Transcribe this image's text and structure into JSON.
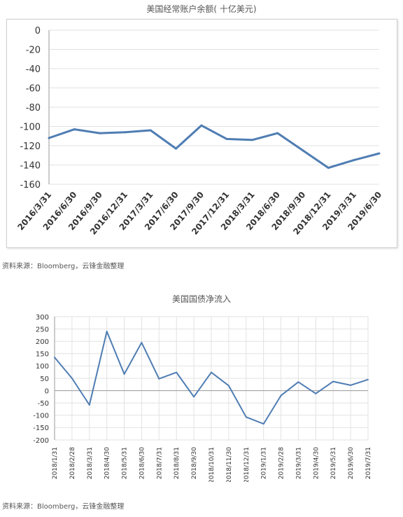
{
  "charts": [
    {
      "title": "美国经常账户余额( 十亿美元)",
      "source": "资料来源：Bloomberg，云锋金融整理"
    },
    {
      "title": "美国国债净流入",
      "source": "资料来源：Bloomberg，云锋金融整理"
    }
  ],
  "chart_data": [
    {
      "type": "line",
      "title": "美国经常账户余额( 十亿美元)",
      "categories": [
        "2016/3/31",
        "2016/6/30",
        "2016/9/30",
        "2016/12/31",
        "2017/3/31",
        "2017/6/30",
        "2017/9/30",
        "2017/12/31",
        "2018/3/31",
        "2018/6/30",
        "2018/9/30",
        "2018/12/31",
        "2019/3/31",
        "2019/6/30"
      ],
      "series": [
        {
          "values": [
            -112,
            -103,
            -107,
            -106,
            -104,
            -123,
            -99,
            -113,
            -114,
            -107,
            -125,
            -143,
            -135,
            -128
          ]
        }
      ],
      "ylim": [
        -160,
        0
      ],
      "yticks": [
        0,
        -20,
        -40,
        -60,
        -80,
        -100,
        -120,
        -140,
        -160
      ],
      "grid": true,
      "line_color": "#4f7db3"
    },
    {
      "type": "line",
      "title": "美国国债净流入",
      "categories": [
        "2018/1/31",
        "2018/2/28",
        "2018/3/31",
        "2018/4/30",
        "2018/5/31",
        "2018/6/30",
        "2018/7/31",
        "2018/8/31",
        "2018/9/30",
        "2018/10/31",
        "2018/11/30",
        "2018/12/31",
        "2019/1/31",
        "2019/2/28",
        "2019/3/31",
        "2019/4/30",
        "2019/5/31",
        "2019/6/30",
        "2019/7/31"
      ],
      "series": [
        {
          "values": [
            135,
            50,
            -58,
            240,
            67,
            195,
            48,
            74,
            -25,
            74,
            20,
            -107,
            -135,
            -20,
            35,
            -12,
            37,
            22,
            45
          ]
        }
      ],
      "ylim": [
        -200,
        300
      ],
      "yticks": [
        300,
        250,
        200,
        150,
        100,
        50,
        0,
        -50,
        -100,
        -150,
        -200
      ],
      "grid": true,
      "line_color": "#4f7db3"
    }
  ]
}
